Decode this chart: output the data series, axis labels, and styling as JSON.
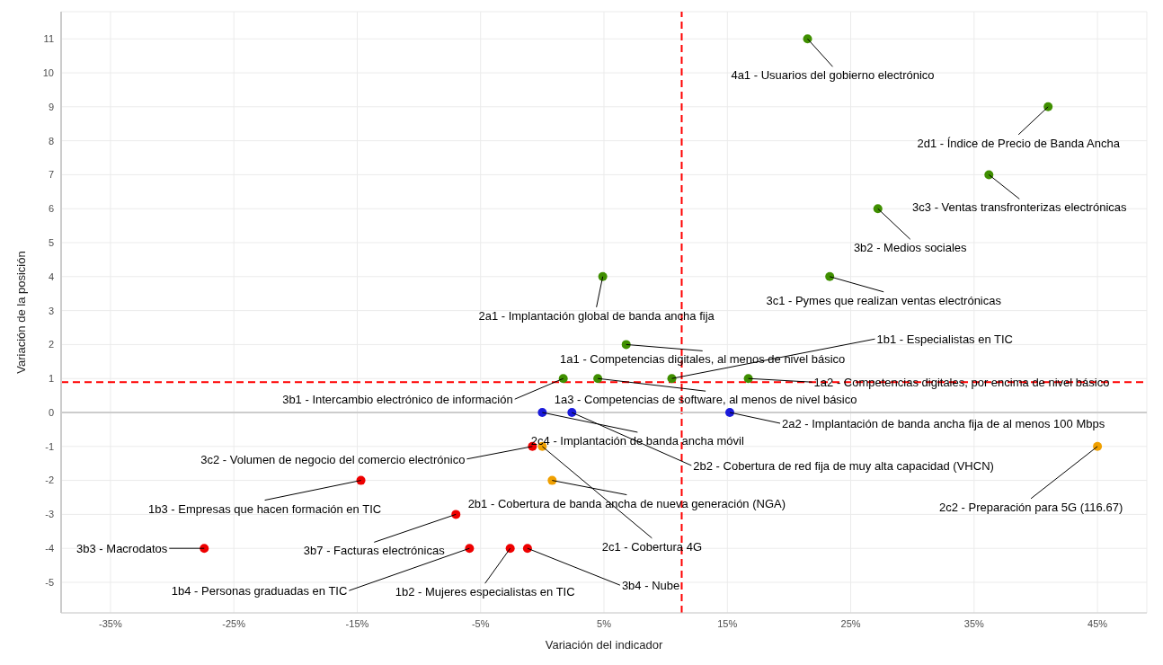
{
  "chart_data": {
    "type": "scatter",
    "xlabel": "Variación del indicador",
    "ylabel": "Variación de la posición",
    "xlim": [
      -39,
      49
    ],
    "ylim": [
      -5.9,
      11.8
    ],
    "xticks": [
      {
        "value": -35,
        "label": "-35%"
      },
      {
        "value": -25,
        "label": "-25%"
      },
      {
        "value": -15,
        "label": "-15%"
      },
      {
        "value": -5,
        "label": "-5%"
      },
      {
        "value": 5,
        "label": "5%"
      },
      {
        "value": 15,
        "label": "15%"
      },
      {
        "value": 25,
        "label": "25%"
      },
      {
        "value": 35,
        "label": "35%"
      },
      {
        "value": 45,
        "label": "45%"
      }
    ],
    "yticks": [
      -5,
      -4,
      -3,
      -2,
      -1,
      0,
      1,
      2,
      3,
      4,
      5,
      6,
      7,
      8,
      9,
      10,
      11
    ],
    "grid": true,
    "marker": "circle",
    "series": [
      {
        "color": "#3f8f00",
        "x": [
          21.5,
          41.0,
          36.2,
          27.2,
          23.3,
          4.9,
          6.8,
          10.5,
          1.7,
          4.5,
          16.7
        ],
        "values": [
          11,
          9,
          7,
          6,
          4,
          4,
          2,
          1,
          1,
          1,
          1
        ]
      },
      {
        "color": "#1a1adb",
        "x": [
          0.0,
          2.4,
          15.2
        ],
        "values": [
          0,
          0,
          0
        ]
      },
      {
        "color": "#f0a000",
        "x": [
          0.0,
          0.8,
          45
        ],
        "values": [
          -1,
          -2,
          -1
        ]
      },
      {
        "color": "#ee0000",
        "x": [
          -0.8,
          -14.7,
          -7.0,
          -27.4,
          -5.9,
          -2.6,
          -1.2
        ],
        "values": [
          -1,
          -2,
          -3,
          -4,
          -4,
          -4,
          -4
        ]
      }
    ],
    "ref_lines": [
      {
        "axis": "x",
        "value": 11.3,
        "color": "#ff0000",
        "line_style": "dashed"
      },
      {
        "axis": "y",
        "value": 0.89,
        "color": "#ff0000",
        "line_style": "dashed"
      },
      {
        "axis": "y",
        "value": 0,
        "color": "#cccccc",
        "line_style": "solid"
      }
    ],
    "annotations": [
      {
        "text": "4a1 - Usuarios del gobierno electrónico",
        "x": 21.5,
        "y": 11
      },
      {
        "text": "2d1 - Índice de Precio de Banda Ancha",
        "x": 41.0,
        "y": 9
      },
      {
        "text": "3c3 - Ventas transfronterizas electrónicas",
        "x": 36.2,
        "y": 7
      },
      {
        "text": "3b2 - Medios sociales",
        "x": 27.2,
        "y": 6
      },
      {
        "text": "3c1 - Pymes que realizan ventas electrónicas",
        "x": 23.3,
        "y": 4
      },
      {
        "text": "2a1 - Implantación global de banda ancha fija",
        "x": 4.9,
        "y": 4
      },
      {
        "text": "1a1 - Competencias digitales, al menos de nivel básico",
        "x": 6.8,
        "y": 2
      },
      {
        "text": "1b1 - Especialistas en TIC",
        "x": 10.5,
        "y": 1
      },
      {
        "text": "3b1 - Intercambio electrónico de información",
        "x": 1.7,
        "y": 1
      },
      {
        "text": "1a3 - Competencias de software, al menos de nivel básico",
        "x": 4.5,
        "y": 1
      },
      {
        "text": "1a2 - Competencias digitales, por encima de nivel básico",
        "x": 16.7,
        "y": 1
      },
      {
        "text": "2c4 - Implantación de banda ancha móvil",
        "x": 0.0,
        "y": 0
      },
      {
        "text": "2b2 - Cobertura de red fija de muy alta capacidad (VHCN)",
        "x": 2.4,
        "y": 0
      },
      {
        "text": "2a2 - Implantación de banda ancha fija de al menos 100 Mbps",
        "x": 15.2,
        "y": 0
      },
      {
        "text": "3c2 - Volumen de negocio del comercio electrónico",
        "x": -0.8,
        "y": -1
      },
      {
        "text": "2c1 - Cobertura 4G",
        "x": 0.0,
        "y": -1
      },
      {
        "text": "2b1 - Cobertura de banda ancha de nueva generación (NGA)",
        "x": 0.8,
        "y": -2
      },
      {
        "text": "2c2 - Preparación para 5G (116.67)",
        "x": 45,
        "y": -1
      },
      {
        "text": "1b3 - Empresas que hacen formación en TIC",
        "x": -14.7,
        "y": -2
      },
      {
        "text": "3b7 - Facturas electrónicas",
        "x": -7.0,
        "y": -3
      },
      {
        "text": "3b3 - Macrodatos",
        "x": -27.4,
        "y": -4
      },
      {
        "text": "1b4 - Personas graduadas en TIC",
        "x": -5.9,
        "y": -4
      },
      {
        "text": "1b2 - Mujeres especialistas en TIC",
        "x": -2.6,
        "y": -4
      },
      {
        "text": "3b4 - Nube",
        "x": -1.2,
        "y": -4
      }
    ]
  }
}
